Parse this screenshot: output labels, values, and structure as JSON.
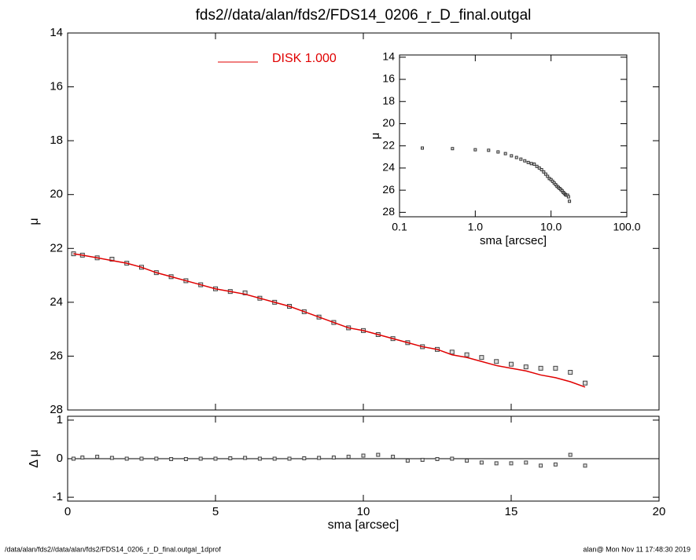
{
  "title": "fds2//data/alan/fds2/FDS14_0206_r_D_final.outgal",
  "footer_left": "/data/alan/fds2//data/alan/fds2/FDS14_0206_r_D_final.outgal_1dprof",
  "footer_right": "alan@  Mon Nov 11 17:48:30 2019",
  "chart_data": [
    {
      "type": "line",
      "ylabel": "μ",
      "xlim": [
        0,
        20
      ],
      "xticks": [
        0,
        5,
        10,
        15,
        20
      ],
      "ylim": [
        14,
        28
      ],
      "yticks": [
        14,
        16,
        18,
        20,
        22,
        24,
        26,
        28
      ],
      "x": [
        0.2,
        0.5,
        1,
        1.5,
        2,
        2.5,
        3,
        3.5,
        4,
        4.5,
        5,
        5.5,
        6,
        6.5,
        7,
        7.5,
        8,
        8.5,
        9,
        9.5,
        10,
        10.5,
        11,
        11.5,
        12,
        12.5,
        13,
        13.5,
        14,
        14.5,
        15,
        15.5,
        16,
        16.5,
        17,
        17.5
      ],
      "legend": "top",
      "series": [
        {
          "style": "markers",
          "color": "#444444",
          "values": [
            22.2,
            22.25,
            22.35,
            22.4,
            22.55,
            22.7,
            22.9,
            23.05,
            23.2,
            23.35,
            23.5,
            23.6,
            23.65,
            23.85,
            24.0,
            24.15,
            24.35,
            24.55,
            24.75,
            24.95,
            25.05,
            25.2,
            25.35,
            25.5,
            25.65,
            25.75,
            25.85,
            25.95,
            26.05,
            26.2,
            26.3,
            26.4,
            26.45,
            26.45,
            26.6,
            27.0
          ]
        },
        {
          "style": "line",
          "name": "DISK  1.000",
          "color": "#e00000",
          "values": [
            22.2,
            22.25,
            22.35,
            22.45,
            22.55,
            22.7,
            22.9,
            23.05,
            23.2,
            23.35,
            23.5,
            23.6,
            23.7,
            23.85,
            24.0,
            24.15,
            24.35,
            24.55,
            24.75,
            24.95,
            25.05,
            25.2,
            25.35,
            25.5,
            25.65,
            25.75,
            25.95,
            26.05,
            26.2,
            26.35,
            26.45,
            26.55,
            26.7,
            26.8,
            26.95,
            27.15
          ]
        }
      ]
    },
    {
      "type": "scatter",
      "xlabel": "sma [arcsec]",
      "ylabel": "Δ μ",
      "xlim": [
        0,
        20
      ],
      "xticks": [
        0,
        5,
        10,
        15,
        20
      ],
      "ylim": [
        1.1,
        -1.1
      ],
      "yticks": [
        1,
        0,
        -1
      ],
      "reference_line": 0,
      "x": [
        0.2,
        0.5,
        1,
        1.5,
        2,
        2.5,
        3,
        3.5,
        4,
        4.5,
        5,
        5.5,
        6,
        6.5,
        7,
        7.5,
        8,
        8.5,
        9,
        9.5,
        10,
        10.5,
        11,
        11.5,
        12,
        12.5,
        13,
        13.5,
        14,
        14.5,
        15,
        15.5,
        16,
        16.5,
        17,
        17.5
      ],
      "values": [
        0,
        0.03,
        0.05,
        0.02,
        0,
        0,
        0,
        -0.01,
        -0.01,
        0,
        0,
        0.01,
        0.02,
        0,
        0,
        0,
        0.01,
        0.02,
        0.03,
        0.05,
        0.08,
        0.1,
        0.05,
        -0.05,
        -0.03,
        -0.01,
        0,
        -0.05,
        -0.1,
        -0.12,
        -0.12,
        -0.1,
        -0.18,
        -0.15,
        0.1,
        -0.18
      ],
      "color": "#444444"
    },
    {
      "type": "line",
      "xlabel": "sma [arcsec]",
      "ylabel": "μ",
      "xlog": true,
      "xlim": [
        0.1,
        100
      ],
      "xticks": [
        {
          "value": 0.1,
          "label": "0.1"
        },
        {
          "value": 1,
          "label": "1.0"
        },
        {
          "value": 10,
          "label": "10.0"
        },
        {
          "value": 100,
          "label": "100.0"
        }
      ],
      "ylim": [
        13.8,
        28.4
      ],
      "yticks": [
        14,
        16,
        18,
        20,
        22,
        24,
        26,
        28
      ],
      "x": [
        0.2,
        0.5,
        1,
        1.5,
        2,
        2.5,
        3,
        3.5,
        4,
        4.5,
        5,
        5.5,
        6,
        6.5,
        7,
        7.5,
        8,
        8.5,
        9,
        9.5,
        10,
        10.5,
        11,
        11.5,
        12,
        12.5,
        13,
        13.5,
        14,
        14.5,
        15,
        15.5,
        16,
        16.5,
        17,
        17.5
      ],
      "series": [
        {
          "style": "markers",
          "color": "#333333",
          "values": [
            22.2,
            22.25,
            22.35,
            22.4,
            22.55,
            22.7,
            22.9,
            23.05,
            23.2,
            23.35,
            23.5,
            23.6,
            23.65,
            23.85,
            24.0,
            24.15,
            24.35,
            24.55,
            24.75,
            24.95,
            25.05,
            25.2,
            25.35,
            25.5,
            25.65,
            25.75,
            25.85,
            25.95,
            26.05,
            26.2,
            26.3,
            26.4,
            26.45,
            26.45,
            26.6,
            27.0
          ]
        }
      ]
    }
  ]
}
